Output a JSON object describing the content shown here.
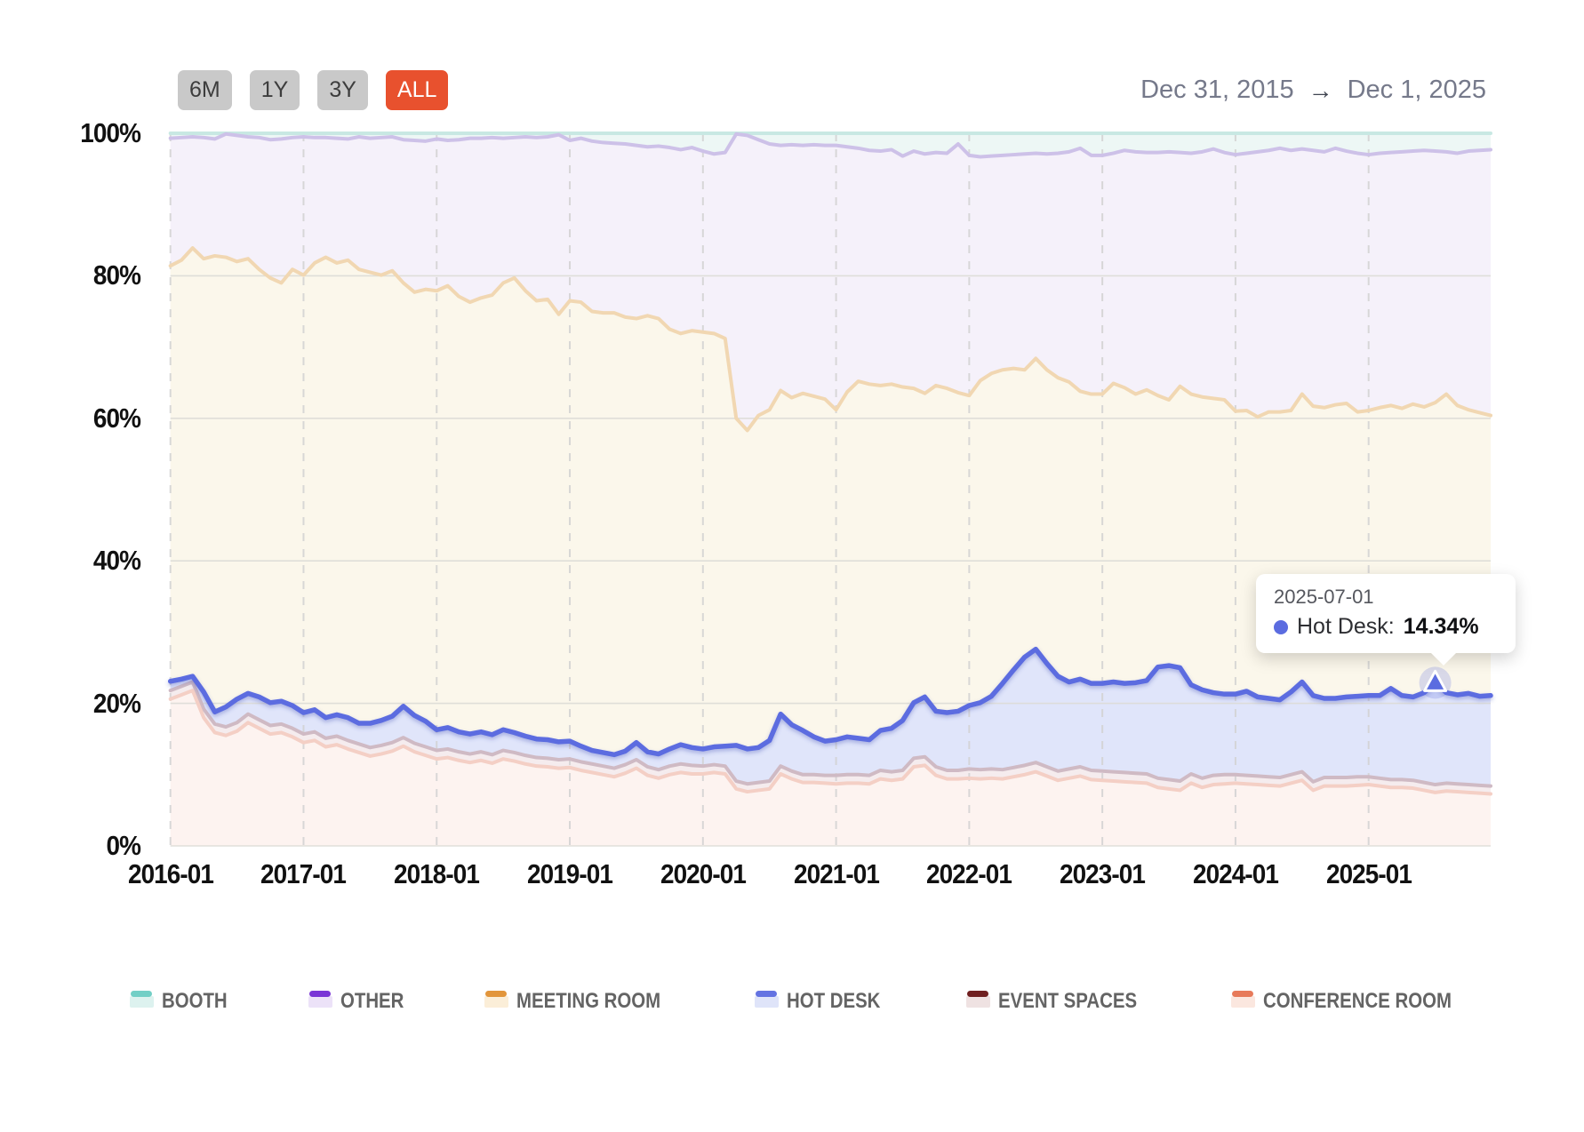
{
  "toolbar": {
    "ranges": [
      {
        "label": "6M",
        "active": false
      },
      {
        "label": "1Y",
        "active": false
      },
      {
        "label": "3Y",
        "active": false
      },
      {
        "label": "ALL",
        "active": true
      }
    ],
    "active_color": "#e8512e",
    "inactive_color": "#c9c9c9"
  },
  "header": {
    "date_start": "Dec 31, 2015",
    "date_arrow": "→",
    "date_end": "Dec 1, 2025"
  },
  "tooltip": {
    "date": "2025-07-01",
    "series": "Hot Desk:",
    "value": "14.34%",
    "marker_month": "2025-07"
  },
  "chart_data": {
    "type": "area",
    "stacked": true,
    "unit": "%",
    "ylim": [
      0,
      100
    ],
    "grid": true,
    "x_start": "2016-01",
    "x_months": 120,
    "x_tick_labels": [
      "2016-01",
      "2017-01",
      "2018-01",
      "2019-01",
      "2020-01",
      "2021-01",
      "2022-01",
      "2023-01",
      "2024-01",
      "2025-01"
    ],
    "y_tick_labels": [
      "0%",
      "20%",
      "40%",
      "60%",
      "80%",
      "100%"
    ],
    "y_tick_values": [
      0,
      20,
      40,
      60,
      80,
      100
    ],
    "note": "cumulative_top arrays are the plotted stacked boundary (cumulative share, %) for each series, monthly 2016-01..2025-12; band thickness = series share. Hot Desk raw share at 2025-07 = 14.34%.",
    "tooltip_point": {
      "month_index": 114,
      "series": "Hot Desk"
    },
    "highlighted_series": "Hot Desk",
    "series": [
      {
        "name": "Conference Room",
        "legend_label": "CONFERENCE ROOM",
        "line_color": "#f4cfc5",
        "fill_color": "#fdf3f0",
        "swatch_color": "#e77a5a",
        "swatch_fill": "#fbe7df",
        "cumulative_top": [
          20.6,
          21.2,
          21.8,
          18.0,
          15.9,
          15.5,
          16.1,
          17.3,
          16.5,
          15.7,
          15.9,
          15.3,
          14.5,
          14.8,
          13.9,
          14.2,
          13.6,
          13.1,
          12.6,
          12.9,
          13.3,
          14.0,
          13.2,
          12.7,
          12.2,
          12.4,
          12.0,
          11.7,
          12.0,
          11.6,
          12.2,
          11.9,
          11.5,
          11.2,
          11.1,
          10.9,
          11.0,
          10.6,
          10.3,
          10.0,
          9.7,
          10.2,
          10.9,
          9.9,
          9.5,
          10.0,
          10.3,
          10.1,
          10.1,
          10.3,
          10.1,
          8.0,
          7.6,
          7.8,
          8.0,
          10.1,
          9.4,
          8.9,
          8.9,
          8.8,
          8.7,
          8.8,
          8.8,
          8.7,
          9.4,
          9.2,
          9.4,
          11.1,
          11.3,
          9.9,
          9.4,
          9.4,
          9.5,
          9.4,
          9.5,
          9.4,
          9.7,
          10.0,
          10.4,
          9.8,
          9.2,
          9.5,
          9.8,
          9.3,
          9.2,
          9.1,
          9.0,
          8.9,
          8.8,
          8.2,
          8.0,
          7.8,
          8.8,
          8.2,
          8.6,
          8.7,
          8.8,
          8.7,
          8.6,
          8.5,
          8.4,
          8.8,
          9.2,
          7.8,
          8.4,
          8.4,
          8.4,
          8.5,
          8.6,
          8.4,
          8.2,
          8.2,
          8.1,
          7.8,
          7.5,
          7.7,
          7.6,
          7.5,
          7.4,
          7.3
        ]
      },
      {
        "name": "Event Spaces",
        "legend_label": "EVENT SPACES",
        "line_color": "#cfbac4",
        "fill_color": "#f5ecee",
        "swatch_color": "#701f20",
        "swatch_fill": "#efe2e2",
        "cumulative_top": [
          21.8,
          22.4,
          23.0,
          19.2,
          17.1,
          16.7,
          17.3,
          18.5,
          17.7,
          16.9,
          17.1,
          16.5,
          15.7,
          16.0,
          15.1,
          15.4,
          14.8,
          14.3,
          13.8,
          14.1,
          14.5,
          15.2,
          14.4,
          13.9,
          13.4,
          13.6,
          13.2,
          12.9,
          13.2,
          12.8,
          13.4,
          13.1,
          12.7,
          12.4,
          12.3,
          12.1,
          12.2,
          11.8,
          11.5,
          11.2,
          10.9,
          11.4,
          12.1,
          11.1,
          10.7,
          11.2,
          11.5,
          11.3,
          11.2,
          11.4,
          11.2,
          9.1,
          8.7,
          8.9,
          9.1,
          11.2,
          10.5,
          10.0,
          10.0,
          9.9,
          9.9,
          10.0,
          10.0,
          9.9,
          10.6,
          10.4,
          10.6,
          12.3,
          12.5,
          11.1,
          10.6,
          10.6,
          10.8,
          10.7,
          10.8,
          10.7,
          11.0,
          11.3,
          11.7,
          11.1,
          10.5,
          10.8,
          11.1,
          10.6,
          10.5,
          10.4,
          10.3,
          10.2,
          10.1,
          9.5,
          9.3,
          9.1,
          10.1,
          9.5,
          9.9,
          10.0,
          10.0,
          9.9,
          9.8,
          9.7,
          9.6,
          10.0,
          10.4,
          9.0,
          9.6,
          9.6,
          9.6,
          9.7,
          9.7,
          9.5,
          9.3,
          9.3,
          9.2,
          8.9,
          8.6,
          8.8,
          8.7,
          8.6,
          8.5,
          8.4
        ]
      },
      {
        "name": "Hot Desk",
        "legend_label": "HOT DESK",
        "line_color": "#5b6ce0",
        "fill_color": "#e0e5fa",
        "swatch_color": "#6473e2",
        "swatch_fill": "#dfe4f9",
        "cumulative_top": [
          23.1,
          23.4,
          23.8,
          21.6,
          18.8,
          19.5,
          20.6,
          21.4,
          20.9,
          20.1,
          20.3,
          19.7,
          18.7,
          19.1,
          18.0,
          18.4,
          18.0,
          17.2,
          17.2,
          17.6,
          18.2,
          19.6,
          18.3,
          17.5,
          16.3,
          16.6,
          16.0,
          15.7,
          16.0,
          15.6,
          16.3,
          15.9,
          15.4,
          15.0,
          14.9,
          14.6,
          14.7,
          14.0,
          13.4,
          13.1,
          12.8,
          13.3,
          14.5,
          13.2,
          12.9,
          13.6,
          14.2,
          13.8,
          13.6,
          13.9,
          14.0,
          14.1,
          13.6,
          13.8,
          14.8,
          18.5,
          17.0,
          16.2,
          15.3,
          14.7,
          14.9,
          15.3,
          15.1,
          14.9,
          16.2,
          16.5,
          17.6,
          20.1,
          20.9,
          18.9,
          18.7,
          18.9,
          19.7,
          20.1,
          21.0,
          22.8,
          24.7,
          26.5,
          27.6,
          25.6,
          23.8,
          23.0,
          23.4,
          22.8,
          22.8,
          23.0,
          22.8,
          22.9,
          23.2,
          25.1,
          25.3,
          25.0,
          22.6,
          21.9,
          21.5,
          21.3,
          21.3,
          21.7,
          20.9,
          20.7,
          20.5,
          21.6,
          23.0,
          21.1,
          20.7,
          20.7,
          20.9,
          21.0,
          21.1,
          21.1,
          22.1,
          21.1,
          20.9,
          21.5,
          22.9,
          21.5,
          21.2,
          21.4,
          21.0,
          21.1
        ]
      },
      {
        "name": "Meeting Room",
        "legend_label": "MEETING ROOM",
        "line_color": "#f1d7b2",
        "fill_color": "#fbf7eb",
        "swatch_color": "#e2953b",
        "swatch_fill": "#fbeed8",
        "cumulative_top": [
          81.4,
          82.2,
          83.9,
          82.4,
          82.8,
          82.6,
          82.0,
          82.4,
          80.9,
          79.7,
          79.0,
          80.9,
          80.1,
          81.8,
          82.6,
          81.8,
          82.2,
          80.9,
          80.5,
          80.1,
          80.7,
          79.0,
          77.7,
          78.1,
          77.9,
          78.6,
          77.1,
          76.3,
          76.9,
          77.3,
          79.0,
          79.7,
          77.9,
          76.5,
          76.7,
          74.6,
          76.5,
          76.3,
          75.0,
          74.8,
          74.8,
          74.2,
          74.0,
          74.4,
          74.0,
          72.5,
          71.9,
          72.3,
          72.1,
          71.9,
          71.2,
          60.0,
          58.3,
          60.4,
          61.2,
          63.9,
          62.9,
          63.5,
          63.1,
          62.7,
          61.2,
          63.7,
          65.2,
          64.8,
          64.6,
          64.8,
          64.4,
          64.2,
          63.5,
          64.6,
          64.2,
          63.6,
          63.2,
          65.3,
          66.3,
          66.8,
          67.0,
          66.8,
          68.4,
          66.8,
          65.7,
          65.1,
          63.8,
          63.4,
          63.4,
          64.9,
          64.3,
          63.4,
          64.0,
          63.2,
          62.6,
          64.5,
          63.4,
          63.0,
          62.8,
          62.6,
          61.0,
          61.1,
          60.2,
          60.9,
          60.9,
          61.1,
          63.4,
          61.7,
          61.5,
          61.9,
          62.1,
          60.9,
          61.1,
          61.5,
          61.8,
          61.4,
          62.0,
          61.6,
          62.2,
          63.4,
          61.8,
          61.2,
          60.8,
          60.4
        ]
      },
      {
        "name": "Other",
        "legend_label": "OTHER",
        "line_color": "#cdc1e8",
        "fill_color": "#f5f1fa",
        "swatch_color": "#7a35d6",
        "swatch_fill": "#ece2f8",
        "cumulative_top": [
          99.3,
          99.4,
          99.5,
          99.4,
          99.2,
          99.9,
          99.7,
          99.5,
          99.4,
          99.1,
          99.2,
          99.4,
          99.5,
          99.4,
          99.4,
          99.3,
          99.2,
          99.5,
          99.3,
          99.4,
          99.5,
          99.1,
          99.0,
          98.9,
          99.2,
          99.0,
          99.1,
          99.3,
          99.3,
          99.4,
          99.3,
          99.4,
          99.5,
          99.4,
          99.5,
          99.8,
          99.0,
          99.3,
          98.9,
          98.7,
          98.6,
          98.5,
          98.3,
          98.1,
          98.2,
          98.0,
          97.7,
          98.0,
          97.5,
          97.1,
          97.3,
          99.9,
          99.7,
          99.1,
          98.5,
          98.3,
          98.4,
          98.3,
          98.4,
          98.3,
          98.3,
          98.1,
          97.9,
          97.6,
          97.5,
          97.7,
          96.8,
          97.5,
          97.1,
          97.3,
          97.2,
          98.5,
          96.9,
          96.7,
          96.8,
          96.9,
          97.0,
          97.1,
          97.2,
          97.1,
          97.2,
          97.4,
          97.9,
          96.9,
          96.9,
          97.2,
          97.6,
          97.4,
          97.3,
          97.3,
          97.4,
          97.3,
          97.2,
          97.4,
          97.8,
          97.3,
          97.0,
          97.2,
          97.4,
          97.6,
          97.9,
          97.6,
          97.8,
          97.6,
          97.4,
          97.9,
          97.5,
          97.2,
          97.0,
          97.2,
          97.3,
          97.4,
          97.5,
          97.6,
          97.5,
          97.4,
          97.2,
          97.5,
          97.6,
          97.7
        ]
      },
      {
        "name": "Booth",
        "legend_label": "BOOTH",
        "line_color": "#c8e8e3",
        "fill_color": "#edf7f5",
        "swatch_color": "#72cfc6",
        "swatch_fill": "#ddf2ef",
        "cumulative_top_flat": 100
      }
    ],
    "legend_display_order": [
      "Booth",
      "Other",
      "Meeting Room",
      "Hot Desk",
      "Event Spaces",
      "Conference Room"
    ]
  }
}
